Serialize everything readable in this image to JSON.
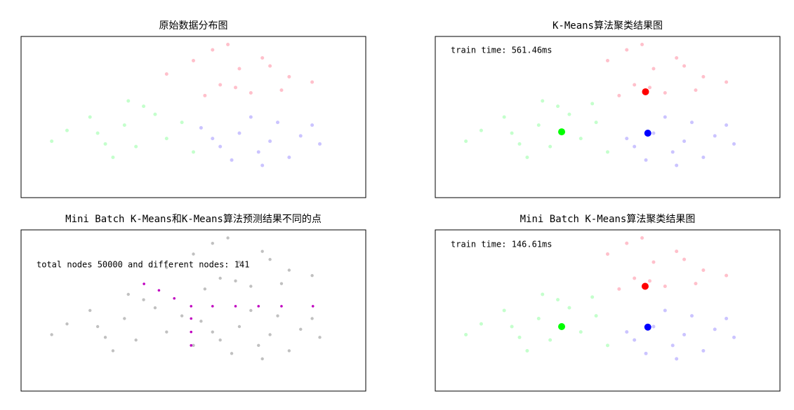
{
  "chart_data": [
    {
      "type": "scatter",
      "title": "原始数据分布图",
      "xlim": [
        -5,
        4
      ],
      "ylim": [
        -3,
        3
      ],
      "series": [
        {
          "color": "#c4ffcc",
          "marker_size": 2.5,
          "x": [
            -3.8,
            -3.2,
            -2.8,
            -2.3,
            -1.8,
            -1.2,
            -0.8,
            -2.6,
            -2.0,
            -1.5,
            -3.0,
            -2.2,
            -0.5,
            -4.2
          ],
          "y": [
            -0.5,
            0.0,
            -1.0,
            -0.3,
            0.4,
            -0.8,
            -0.2,
            -1.5,
            -1.1,
            0.1,
            -0.6,
            0.6,
            -1.3,
            -0.9
          ]
        },
        {
          "color": "#cbc4ff",
          "marker_size": 2.5,
          "x": [
            -0.3,
            0.2,
            0.7,
            1.2,
            1.7,
            2.3,
            2.8,
            0.5,
            1.0,
            1.5,
            2.0,
            0.0,
            1.3,
            2.6
          ],
          "y": [
            -0.4,
            -1.1,
            -0.6,
            -1.3,
            -0.2,
            -0.7,
            -1.0,
            -1.6,
            0.0,
            -0.9,
            -1.5,
            -0.8,
            -1.8,
            -0.3
          ]
        },
        {
          "color": "#ffc0cb",
          "marker_size": 2.5,
          "x": [
            -1.2,
            -0.5,
            0.2,
            0.7,
            1.3,
            2.0,
            2.6,
            0.0,
            1.0,
            1.8,
            -0.2,
            0.6,
            1.5,
            0.4
          ],
          "y": [
            1.6,
            2.1,
            1.2,
            1.8,
            2.2,
            1.5,
            1.3,
            2.5,
            0.9,
            1.0,
            0.8,
            1.1,
            1.9,
            2.7
          ]
        }
      ]
    },
    {
      "type": "scatter",
      "title": "K-Means算法聚类结果图",
      "annotation": "train time: 561.46ms",
      "xlim": [
        -5,
        4
      ],
      "ylim": [
        -3,
        3
      ],
      "series": [
        {
          "color": "#c4ffcc",
          "marker_size": 2.5,
          "x": [
            -3.8,
            -3.2,
            -2.8,
            -2.3,
            -1.8,
            -1.2,
            -0.8,
            -2.6,
            -2.0,
            -1.5,
            -3.0,
            -2.2,
            -0.5,
            -4.2,
            -0.9
          ],
          "y": [
            -0.5,
            0.0,
            -1.0,
            -0.3,
            0.4,
            -0.8,
            -0.2,
            -1.5,
            -1.1,
            0.1,
            -0.6,
            0.6,
            -1.3,
            -0.9,
            0.5
          ]
        },
        {
          "color": "#cbc4ff",
          "marker_size": 2.5,
          "x": [
            0.2,
            0.7,
            1.2,
            1.7,
            2.3,
            2.8,
            0.5,
            1.0,
            1.5,
            2.0,
            0.0,
            1.3,
            2.6
          ],
          "y": [
            -1.1,
            -0.6,
            -1.3,
            -0.2,
            -0.7,
            -1.0,
            -1.6,
            0.0,
            -0.9,
            -1.5,
            -0.8,
            -1.8,
            -0.3
          ]
        },
        {
          "color": "#ffc0cb",
          "marker_size": 2.5,
          "x": [
            -0.5,
            0.2,
            0.7,
            1.3,
            2.0,
            2.6,
            0.0,
            1.0,
            1.8,
            -0.2,
            0.6,
            1.5,
            0.4
          ],
          "y": [
            2.1,
            1.2,
            1.8,
            2.2,
            1.5,
            1.3,
            2.5,
            0.9,
            1.0,
            0.8,
            1.1,
            1.9,
            2.7
          ]
        },
        {
          "color": "#00ff00",
          "marker_size": 5,
          "x": [
            -1.7
          ],
          "y": [
            -0.55
          ]
        },
        {
          "color": "#ff0000",
          "marker_size": 5,
          "x": [
            0.49
          ],
          "y": [
            0.94
          ]
        },
        {
          "color": "#0000ff",
          "marker_size": 5,
          "x": [
            0.55
          ],
          "y": [
            -0.6
          ]
        }
      ]
    },
    {
      "type": "scatter",
      "title": "Mini Batch K-Means和K-Means算法预测结果不同的点",
      "annotation": "total nodes 50000 and different nodes: 141",
      "xlim": [
        -5,
        4
      ],
      "ylim": [
        -3,
        3
      ],
      "series": [
        {
          "color": "#c0c0c0",
          "marker_size": 2.5,
          "x": [
            -3.8,
            -3.2,
            -2.8,
            -2.3,
            -1.8,
            -1.2,
            -0.8,
            -2.6,
            -2.0,
            -1.5,
            -3.0,
            -2.2,
            -0.5,
            -4.2,
            -0.3,
            0.2,
            0.7,
            1.2,
            1.7,
            2.3,
            2.8,
            0.5,
            1.0,
            1.5,
            2.0,
            0.0,
            1.3,
            2.6,
            -1.2,
            -0.5,
            0.2,
            0.7,
            1.3,
            2.0,
            2.6,
            0.0,
            1.0,
            1.8,
            -0.2,
            0.6,
            1.5,
            0.4
          ],
          "y": [
            -0.5,
            0.0,
            -1.0,
            -0.3,
            0.4,
            -0.8,
            -0.2,
            -1.5,
            -1.1,
            0.1,
            -0.6,
            0.6,
            -1.3,
            -0.9,
            -0.4,
            -1.1,
            -0.6,
            -1.3,
            -0.2,
            -0.7,
            -1.0,
            -1.6,
            0.0,
            -0.9,
            -1.5,
            -0.8,
            -1.8,
            -0.3,
            1.6,
            2.1,
            1.2,
            1.8,
            2.2,
            1.5,
            1.3,
            2.5,
            0.9,
            1.0,
            0.8,
            1.1,
            1.9,
            2.7
          ]
        },
        {
          "color": "#c000c0",
          "marker_size": 1.8,
          "x": [
            -1.79,
            -1.4,
            -1.0,
            -0.56,
            -0.56,
            -0.56,
            -0.56,
            0.0,
            0.6,
            1.2,
            1.8,
            2.62
          ],
          "y": [
            0.99,
            0.75,
            0.45,
            0.16,
            -0.3,
            -0.8,
            -1.3,
            0.16,
            0.16,
            0.16,
            0.16,
            0.16
          ]
        }
      ]
    },
    {
      "type": "scatter",
      "title": "Mini Batch K-Means算法聚类结果图",
      "annotation": "train time: 146.61ms",
      "xlim": [
        -5,
        4
      ],
      "ylim": [
        -3,
        3
      ],
      "series": [
        {
          "color": "#c4ffcc",
          "marker_size": 2.5,
          "x": [
            -3.8,
            -3.2,
            -2.8,
            -2.3,
            -1.8,
            -1.2,
            -0.8,
            -2.6,
            -2.0,
            -1.5,
            -3.0,
            -2.2,
            -0.5,
            -4.2,
            -0.9
          ],
          "y": [
            -0.5,
            0.0,
            -1.0,
            -0.3,
            0.4,
            -0.8,
            -0.2,
            -1.5,
            -1.1,
            0.1,
            -0.6,
            0.6,
            -1.3,
            -0.9,
            0.5
          ]
        },
        {
          "color": "#cbc4ff",
          "marker_size": 2.5,
          "x": [
            0.2,
            0.7,
            1.2,
            1.7,
            2.3,
            2.8,
            0.5,
            1.0,
            1.5,
            2.0,
            0.0,
            1.3,
            2.6
          ],
          "y": [
            -1.1,
            -0.6,
            -1.3,
            -0.2,
            -0.7,
            -1.0,
            -1.6,
            0.0,
            -0.9,
            -1.5,
            -0.8,
            -1.8,
            -0.3
          ]
        },
        {
          "color": "#ffc0cb",
          "marker_size": 2.5,
          "x": [
            -0.5,
            0.2,
            0.7,
            1.3,
            2.0,
            2.6,
            0.0,
            1.0,
            1.8,
            -0.2,
            0.6,
            1.5,
            0.4
          ],
          "y": [
            2.1,
            1.2,
            1.8,
            2.2,
            1.5,
            1.3,
            2.5,
            0.9,
            1.0,
            0.8,
            1.1,
            1.9,
            2.7
          ]
        },
        {
          "color": "#00ff00",
          "marker_size": 5,
          "x": [
            -1.7
          ],
          "y": [
            -0.6
          ]
        },
        {
          "color": "#ff0000",
          "marker_size": 5,
          "x": [
            0.48
          ],
          "y": [
            0.9
          ]
        },
        {
          "color": "#0000ff",
          "marker_size": 5,
          "x": [
            0.55
          ],
          "y": [
            -0.62
          ]
        }
      ]
    }
  ]
}
